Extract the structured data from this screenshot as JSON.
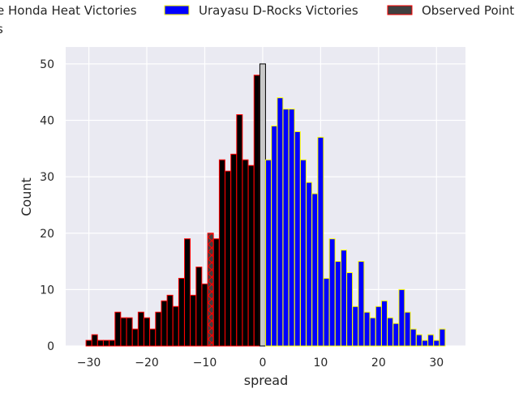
{
  "chart_data": {
    "type": "bar",
    "xlabel": "spread",
    "ylabel": "Count",
    "xlim": [
      -34,
      35
    ],
    "ylim": [
      0,
      53
    ],
    "grid": true,
    "legend_placement": "top, partly clipped at left and right edges",
    "x_ticks": [
      -30,
      -20,
      -10,
      0,
      10,
      20,
      30
    ],
    "y_ticks": [
      0,
      10,
      20,
      30,
      40,
      50
    ],
    "legend": [
      {
        "label": "Kawasaki Honda Heat Victories",
        "visible_text": "e Honda Heat Victories",
        "fill": "#000000",
        "edge": "#ff0000"
      },
      {
        "label": "Urayasu D-Rocks Victories",
        "visible_text": "Urayasu D-Rocks Victories",
        "fill": "#0000ff",
        "edge": "#ffff00"
      },
      {
        "label": "Observed Points",
        "visible_text": "Observed Point",
        "fill": "#404040",
        "edge": "#ff0000"
      },
      {
        "label": "Draws",
        "visible_text": "s",
        "fill": "#c8c8c8",
        "edge": "#000000"
      }
    ],
    "series": [
      {
        "name": "Kawasaki Honda Heat Victories",
        "color": "#000000",
        "edge": "#ff0000",
        "x": [
          -30,
          -29,
          -28,
          -27,
          -26,
          -25,
          -24,
          -23,
          -22,
          -21,
          -20,
          -19,
          -18,
          -17,
          -16,
          -15,
          -14,
          -13,
          -12,
          -11,
          -10,
          -9,
          -8,
          -7,
          -6,
          -5,
          -4,
          -3,
          -2,
          -1
        ],
        "values": [
          1,
          2,
          1,
          1,
          1,
          6,
          5,
          5,
          3,
          6,
          5,
          3,
          6,
          8,
          9,
          7,
          12,
          19,
          9,
          14,
          11,
          20,
          19,
          33,
          31,
          34,
          41,
          33,
          32,
          48
        ]
      },
      {
        "name": "Draws",
        "color": "#c8c8c8",
        "edge": "#000000",
        "x": [
          0
        ],
        "values": [
          50
        ]
      },
      {
        "name": "Urayasu D-Rocks Victories",
        "color": "#0000ff",
        "edge": "#ffff00",
        "x": [
          1,
          2,
          3,
          4,
          5,
          6,
          7,
          8,
          9,
          10,
          11,
          12,
          13,
          14,
          15,
          16,
          17,
          18,
          19,
          20,
          21,
          22,
          23,
          24,
          25,
          26,
          27,
          28,
          29,
          30,
          31
        ],
        "values": [
          33,
          39,
          44,
          42,
          42,
          38,
          33,
          29,
          27,
          37,
          12,
          19,
          15,
          17,
          13,
          7,
          15,
          6,
          5,
          7,
          8,
          5,
          4,
          10,
          6,
          3,
          2,
          1,
          2,
          1,
          3
        ]
      }
    ],
    "observed_point": {
      "name": "Observed Points",
      "x": -9,
      "color": "#404040",
      "edge": "#ff0000",
      "hatch": "x"
    }
  }
}
